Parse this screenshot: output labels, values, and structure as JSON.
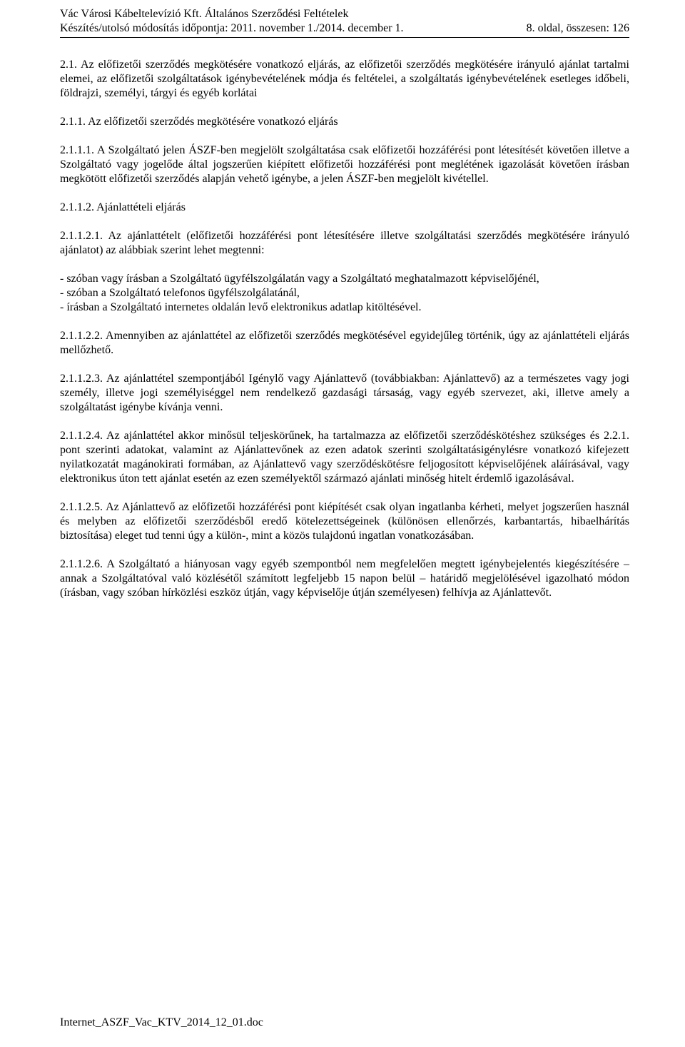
{
  "header": {
    "line1": "Vác Városi Kábeltelevízió Kft. Általános Szerződési Feltételek",
    "line2_left": "Készítés/utolsó módosítás időpontja: 2011. november 1./2014. december 1.",
    "line2_right": "8. oldal, összesen: 126"
  },
  "sections": {
    "s2_1_title": "2.1. Az előfizetői szerződés megkötésére vonatkozó eljárás, az előfizetői szerződés megkötésére irányuló ajánlat tartalmi elemei, az előfizetői szolgáltatások igénybevételének módja és feltételei, a szolgáltatás igénybevételének esetleges időbeli, földrajzi, személyi, tárgyi és egyéb korlátai",
    "s2_1_1_heading": "2.1.1. Az előfizetői szerződés megkötésére vonatkozó eljárás",
    "s2_1_1_1": "2.1.1.1. A Szolgáltató jelen ÁSZF-ben megjelölt szolgáltatása csak előfizetői hozzáférési pont létesítését követően illetve a Szolgáltató vagy jogelőde által jogszerűen kiépített előfizetői hozzáférési pont meglétének igazolását követően írásban megkötött előfizetői szerződés alapján vehető igénybe, a jelen ÁSZF-ben megjelölt kivétellel.",
    "s2_1_1_2_heading": "2.1.1.2. Ajánlattételi eljárás",
    "s2_1_1_2_1": "2.1.1.2.1. Az ajánlattételt (előfizetői hozzáférési pont létesítésére illetve szolgáltatási szerződés megkötésére irányuló ajánlatot) az alábbiak szerint lehet megtenni:",
    "list_items": [
      "- szóban vagy írásban a Szolgáltató ügyfélszolgálatán vagy a Szolgáltató meghatalmazott képviselőjénél,",
      "- szóban a Szolgáltató telefonos ügyfélszolgálatánál,",
      "- írásban a Szolgáltató internetes oldalán levő elektronikus adatlap kitöltésével."
    ],
    "s2_1_1_2_2": "2.1.1.2.2. Amennyiben az ajánlattétel az előfizetői szerződés megkötésével egyidejűleg történik, úgy az ajánlattételi eljárás mellőzhető.",
    "s2_1_1_2_3": "2.1.1.2.3. Az ajánlattétel szempontjából Igénylő vagy Ajánlattevő (továbbiakban: Ajánlattevő) az a természetes vagy jogi személy, illetve jogi személyiséggel nem rendelkező gazdasági társaság, vagy egyéb szervezet, aki, illetve amely a szolgáltatást igénybe kívánja venni.",
    "s2_1_1_2_4": "2.1.1.2.4. Az ajánlattétel akkor minősül teljeskörűnek, ha tartalmazza az előfizetői szerződéskötéshez szükséges és 2.2.1. pont szerinti adatokat, valamint az Ajánlattevőnek az ezen adatok szerinti szolgáltatásigénylésre vonatkozó kifejezett nyilatkozatát magánokirati formában, az Ajánlattevő vagy szerződéskötésre feljogosított képviselőjének aláírásával, vagy elektronikus úton tett ajánlat esetén az ezen személyektől származó ajánlati minőség hitelt érdemlő igazolásával.",
    "s2_1_1_2_5": "2.1.1.2.5. Az Ajánlattevő az előfizetői hozzáférési pont kiépítését csak olyan ingatlanba kérheti, melyet jogszerűen használ és melyben az előfizetői szerződésből eredő kötelezettségeinek (különösen ellenőrzés, karbantartás, hibaelhárítás biztosítása) eleget tud tenni úgy a külön-, mint a közös tulajdonú ingatlan vonatkozásában.",
    "s2_1_1_2_6": "2.1.1.2.6. A Szolgáltató a hiányosan vagy egyéb szempontból nem megfelelően megtett igénybejelentés kiegészítésére – annak a Szolgáltatóval való közlésétől számított legfeljebb 15 napon belül – határidő megjelölésével igazolható módon (írásban, vagy szóban hírközlési eszköz útján, vagy képviselője útján személyesen) felhívja az Ajánlattevőt."
  },
  "footer": "Internet_ASZF_Vac_KTV_2014_12_01.doc"
}
